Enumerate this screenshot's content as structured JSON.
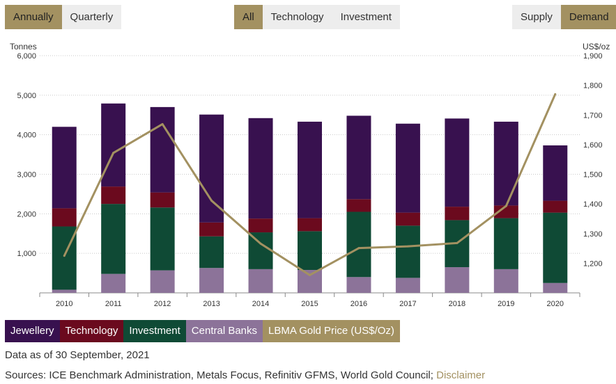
{
  "controls": {
    "period": [
      {
        "label": "Annually",
        "active": true
      },
      {
        "label": "Quarterly",
        "active": false
      }
    ],
    "sector": [
      {
        "label": "All",
        "active": true
      },
      {
        "label": "Technology",
        "active": false
      },
      {
        "label": "Investment",
        "active": false
      }
    ],
    "view": [
      {
        "label": "Supply",
        "active": false
      },
      {
        "label": "Demand",
        "active": true
      }
    ]
  },
  "footer": {
    "data_note": "Data as of 30 September, 2021",
    "sources": "Sources: ICE Benchmark Administration, Metals Focus, Refinitiv GFMS, World Gold Council;",
    "disclaimer": "Disclaimer"
  },
  "chart_data": {
    "type": "bar",
    "stacked": true,
    "categories": [
      "2010",
      "2011",
      "2012",
      "2013",
      "2014",
      "2015",
      "2016",
      "2017",
      "2018",
      "2019",
      "2020"
    ],
    "left_axis": {
      "label": "Tonnes",
      "ylim": [
        0,
        6000
      ],
      "ticks": [
        "1,000",
        "2,000",
        "3,000",
        "4,000",
        "5,000",
        "6,000"
      ]
    },
    "right_axis": {
      "label": "US$/oz",
      "ylim": [
        1100,
        1900
      ],
      "ticks": [
        "1,200",
        "1,300",
        "1,400",
        "1,500",
        "1,600",
        "1,700",
        "1,800",
        "1,900"
      ]
    },
    "grid": true,
    "legend_placement": "bottom-left",
    "series": [
      {
        "name": "Central Banks",
        "color": "#8c7399",
        "values": [
          80,
          480,
          570,
          630,
          600,
          580,
          400,
          380,
          650,
          600,
          250
        ]
      },
      {
        "name": "Investment",
        "color": "#0f4a35",
        "values": [
          1600,
          1770,
          1590,
          800,
          930,
          980,
          1650,
          1320,
          1190,
          1290,
          1780
        ]
      },
      {
        "name": "Technology",
        "color": "#6b0a1e",
        "values": [
          460,
          440,
          380,
          350,
          350,
          330,
          320,
          330,
          340,
          320,
          300
        ]
      },
      {
        "name": "Jewellery",
        "color": "#38114f",
        "values": [
          2060,
          2100,
          2160,
          2730,
          2540,
          2440,
          2110,
          2250,
          2230,
          2120,
          1400
        ]
      }
    ],
    "line": {
      "name": "LBMA Gold Price (US$/Oz)",
      "color": "#a39161",
      "axis": "right",
      "values": [
        1225,
        1572,
        1669,
        1411,
        1266,
        1160,
        1251,
        1257,
        1268,
        1393,
        1770
      ]
    }
  },
  "legend_order": [
    "Jewellery",
    "Technology",
    "Investment",
    "Central Banks",
    "LBMA Gold Price (US$/Oz)"
  ],
  "legend_colors": [
    "#38114f",
    "#6b0a1e",
    "#0f4a35",
    "#8c7399",
    "#a39161"
  ]
}
